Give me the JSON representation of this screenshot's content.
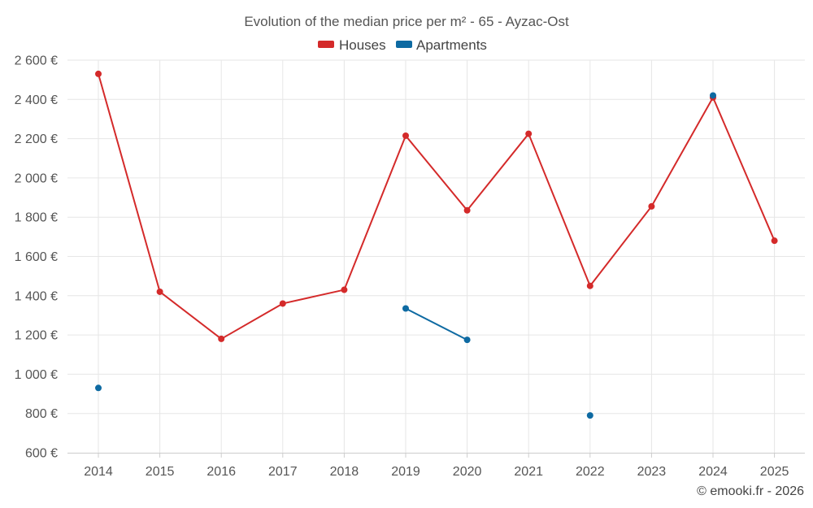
{
  "chart_data": {
    "type": "line",
    "title": "Evolution of the median price per m² - 65 - Ayzac-Ost",
    "categories": [
      "2014",
      "2015",
      "2016",
      "2017",
      "2018",
      "2019",
      "2020",
      "2021",
      "2022",
      "2023",
      "2024",
      "2025"
    ],
    "ylim": [
      600,
      2600
    ],
    "yticks": [
      600,
      800,
      1000,
      1200,
      1400,
      1600,
      1800,
      2000,
      2200,
      2400,
      2600
    ],
    "ytick_labels": [
      "600 €",
      "800 €",
      "1 000 €",
      "1 200 €",
      "1 400 €",
      "1 600 €",
      "1 800 €",
      "2 000 €",
      "2 200 €",
      "2 400 €",
      "2 600 €"
    ],
    "legend_position": "top-center",
    "grid": true,
    "series": [
      {
        "name": "Houses",
        "color": "#d42a2a",
        "values": [
          2530,
          1420,
          1180,
          1360,
          1430,
          2215,
          1835,
          2225,
          1450,
          1855,
          2410,
          1680
        ]
      },
      {
        "name": "Apartments",
        "color": "#0e6aa2",
        "values": [
          930,
          null,
          null,
          null,
          null,
          1335,
          1175,
          null,
          790,
          null,
          2420,
          null
        ]
      }
    ]
  },
  "credit": "© emooki.fr - 2026"
}
